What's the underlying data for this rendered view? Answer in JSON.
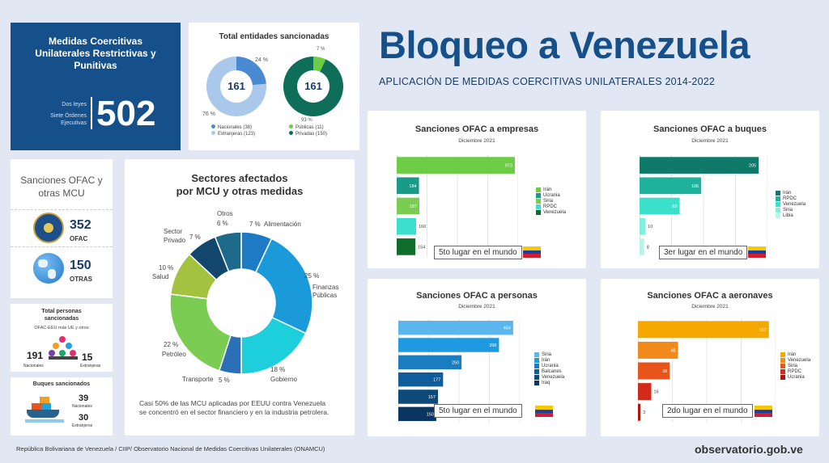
{
  "header": {
    "title": "Bloqueo a Venezuela",
    "subtitle": "APLICACIÓN DE MEDIDAS COERCITIVAS UNILATERALES 2014-2022"
  },
  "mcu_box": {
    "title": "Medidas Coercitivas Unilaterales Restrictivas y Punitivas",
    "line1": "Dos leyes",
    "line2": "Siete Órdenes Ejecutivas",
    "total": "502"
  },
  "entidades": {
    "title": "Total entidades sancionadas",
    "donut1": {
      "center": "161",
      "pct_a": "24 %",
      "pct_b": "76 %",
      "legend_a": "Nacionales (38)",
      "legend_b": "Extranjeras (123)",
      "values": [
        38,
        123
      ],
      "colors": [
        "#4a8ad1",
        "#a9c8ea"
      ]
    },
    "donut2": {
      "center": "161",
      "pct_a": "7 %",
      "pct_b": "93 %",
      "legend_a": "Públicas (11)",
      "legend_b": "Privadas (150)",
      "values": [
        11,
        150
      ],
      "colors": [
        "#6ccc44",
        "#0f6e59"
      ]
    }
  },
  "ofac_box": {
    "title": "Sanciones OFAC y otras MCU",
    "ofac_value": "352",
    "ofac_label": "OFAC",
    "otras_value": "150",
    "otras_label": "OTRAS"
  },
  "personas_box": {
    "title": "Total personas sancionadas",
    "subtitle": "OFAC-EEU más UE y otros",
    "nacionales_value": "191",
    "nacionales_label": "Nacionales",
    "extranjeras_value": "15",
    "extranjeras_label": "Extranjeras"
  },
  "buques_box": {
    "title": "Buques sancionados",
    "nacionales_value": "39",
    "nacionales_label": "Nacionales",
    "extranjeros_value": "30",
    "extranjeros_label": "Extranjeros"
  },
  "sectores": {
    "title_line1": "Sectores afectados",
    "title_line2": "por MCU y otras medidas",
    "note": "Casi 50% de las MCU aplicadas por EEUU contra Venezuela se concentró en el sector financiero y en la industria petrolera.",
    "labels": {
      "otros": "Otros",
      "otros_pct": "6 %",
      "alim_pct": "7 %",
      "alim": "Alimentación",
      "fin_pct": "25 %",
      "fin1": "Finanzas",
      "fin2": "Públicas",
      "gob_pct": "18 %",
      "gob": "Gobierno",
      "trans": "Transporte",
      "trans_pct": "5 %",
      "pet_pct": "22 %",
      "pet": "Petróleo",
      "salud_pct": "10 %",
      "salud": "Salud",
      "priv1": "Sector",
      "priv2": "Privado",
      "priv_pct": "7 %"
    }
  },
  "chart_data": [
    {
      "type": "pie",
      "title": "Sectores afectados por MCU y otras medidas",
      "categories": [
        "Alimentación",
        "Finanzas Públicas",
        "Gobierno",
        "Transporte",
        "Petróleo",
        "Salud",
        "Sector Privado",
        "Otros"
      ],
      "values": [
        7,
        25,
        18,
        5,
        22,
        10,
        7,
        6
      ],
      "colors": [
        "#1d7ac4",
        "#1a9ad8",
        "#1ccfda",
        "#2a6fb8",
        "#7acc52",
        "#a3c240",
        "#12466c",
        "#1d6a8a"
      ]
    },
    {
      "type": "bar",
      "title": "Sanciones OFAC a empresas",
      "subtitle": "Diciembre 2021",
      "rank": "5to lugar en el mundo",
      "categories": [
        "Irán",
        "Ucrania",
        "Siria",
        "RPDC",
        "Venezuela"
      ],
      "values": [
        973,
        184,
        187,
        160,
        154
      ],
      "colors": [
        "#6ccc44",
        "#1a9b8a",
        "#7acc52",
        "#3adfcf",
        "#0f6e2a"
      ],
      "xlim": [
        0,
        1000
      ]
    },
    {
      "type": "bar",
      "title": "Sanciones OFAC a buques",
      "subtitle": "Diciembre 2021",
      "rank": "3er lugar en el mundo",
      "categories": [
        "Irán",
        "RPDC",
        "Venezuela",
        "Siria",
        "Libia"
      ],
      "values": [
        205,
        106,
        69,
        10,
        8
      ],
      "colors": [
        "#0f7a6a",
        "#1fb39e",
        "#3ae0c9",
        "#7ff0e0",
        "#b5f5ec"
      ],
      "xlim": [
        0,
        220
      ]
    },
    {
      "type": "bar",
      "title": "Sanciones OFAC a personas",
      "subtitle": "Diciembre 2021",
      "rank": "5to lugar en el mundo",
      "categories": [
        "Siria",
        "Irán",
        "Ucrania",
        "Balcanes",
        "Venezuela",
        "Iraq"
      ],
      "values": [
        454,
        398,
        250,
        177,
        157,
        150
      ],
      "colors": [
        "#5bb6ee",
        "#1f9ae0",
        "#197dc0",
        "#0f5e99",
        "#0d4a7a",
        "#0a3560"
      ],
      "xlim": [
        0,
        480
      ]
    },
    {
      "type": "bar",
      "title": "Sanciones OFAC a aeronaves",
      "subtitle": "Diciembre 2021",
      "rank": "2do lugar en el mundo",
      "categories": [
        "Irán",
        "Venezuela",
        "Siria",
        "RPDC",
        "Ucrania"
      ],
      "values": [
        157,
        48,
        38,
        16,
        3
      ],
      "colors": [
        "#f5a800",
        "#f08a1a",
        "#e8551c",
        "#d42a1a",
        "#a81a10"
      ],
      "xlim": [
        0,
        165
      ]
    }
  ],
  "footer": {
    "source": "República Bolivariana de Venezuela / CIIP/ Observatorio Nacional de Medidas Coercitivas Unilaterales (ONAMCU)",
    "site": "observatorio.gob.ve"
  }
}
